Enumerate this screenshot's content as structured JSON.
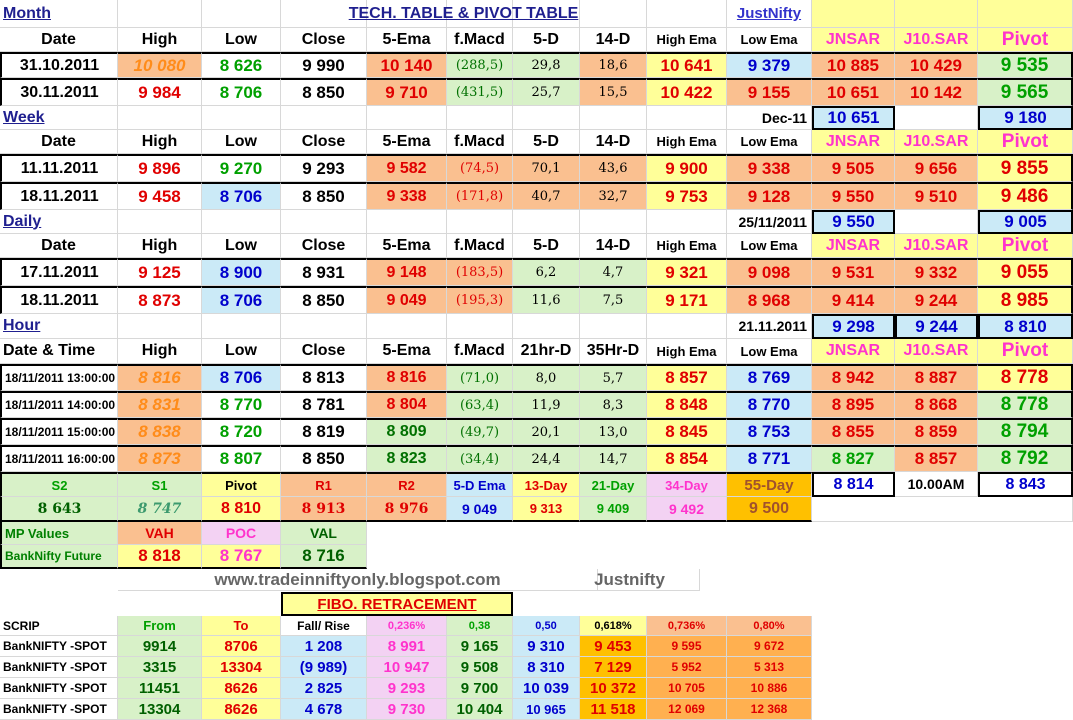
{
  "title": "TECH. TABLE  & PIVOT TABLE",
  "brand": "JustNifty",
  "brand2": "Justnifty",
  "website": "www.tradeinniftyonly.blogspot.com",
  "colors": {
    "orange": "#fac090",
    "green": "#d8f1c8",
    "blue": "#cbeaf7",
    "yellow": "#ffff99",
    "pink": "#f3d2f3",
    "gold": "#ffc000",
    "navy": "#1f1f8f"
  },
  "month": {
    "label": "Month",
    "headers": [
      "Date",
      "High",
      "Low",
      "Close",
      "5-Ema",
      "f.Macd",
      "5-D",
      "14-D",
      "High Ema",
      "Low Ema",
      "JNSAR",
      "J10.SAR",
      "Pivot"
    ],
    "rows": [
      [
        "31.10.2011",
        "10 080",
        "8 626",
        "9 990",
        "10 140",
        "(288,5)",
        "29,8",
        "18,6",
        "10 641",
        "9 379",
        "10 885",
        "10 429",
        "9 535"
      ],
      [
        "30.11.2011",
        "9 984",
        "8 706",
        "8 850",
        "9 710",
        "(431,5)",
        "25,7",
        "15,5",
        "10 422",
        "9 155",
        "10 651",
        "10 142",
        "9 565"
      ]
    ]
  },
  "week": {
    "label": "Week",
    "ref_date": "Dec-11",
    "ref_jnsar": "10 651",
    "ref_pivot": "9 180",
    "headers": [
      "Date",
      "High",
      "Low",
      "Close",
      "5-Ema",
      "f.Macd",
      "5-D",
      "14-D",
      "High Ema",
      "Low Ema",
      "JNSAR",
      "J10.SAR",
      "Pivot"
    ],
    "rows": [
      [
        "11.11.2011",
        "9 896",
        "9 270",
        "9 293",
        "9 582",
        "(74,5)",
        "70,1",
        "43,6",
        "9 900",
        "9 338",
        "9 505",
        "9 656",
        "9 855"
      ],
      [
        "18.11.2011",
        "9 458",
        "8 706",
        "8 850",
        "9 338",
        "(171,8)",
        "40,7",
        "32,7",
        "9 753",
        "9 128",
        "9 550",
        "9 510",
        "9 486"
      ]
    ]
  },
  "daily": {
    "label": "Daily",
    "ref_date": "25/11/2011",
    "ref_jnsar": "9 550",
    "ref_pivot": "9 005",
    "headers": [
      "Date",
      "High",
      "Low",
      "Close",
      "5-Ema",
      "f.Macd",
      "5-D",
      "14-D",
      "High Ema",
      "Low Ema",
      "JNSAR",
      "J10.SAR",
      "Pivot"
    ],
    "rows": [
      [
        "17.11.2011",
        "9 125",
        "8 900",
        "8 931",
        "9 148",
        "(183,5)",
        "6,2",
        "4,7",
        "9 321",
        "9 098",
        "9 531",
        "9 332",
        "9 055"
      ],
      [
        "18.11.2011",
        "8 873",
        "8 706",
        "8 850",
        "9 049",
        "(195,3)",
        "11,6",
        "7,5",
        "9 171",
        "8 968",
        "9 414",
        "9 244",
        "8 985"
      ]
    ]
  },
  "hour": {
    "label": "Hour",
    "ref_date": "21.11.2011",
    "ref_jnsar": "9 298",
    "ref_j10": "9 244",
    "ref_pivot": "8 810",
    "headers": [
      "Date & Time",
      "High",
      "Low",
      "Close",
      "5-Ema",
      "f.Macd",
      "21hr-D",
      "35Hr-D",
      "High Ema",
      "Low Ema",
      "JNSAR",
      "J10.SAR",
      "Pivot"
    ],
    "rows": [
      [
        "18/11/2011 13:00:00",
        "8 816",
        "8 706",
        "8 813",
        "8 816",
        "(71,0)",
        "8,0",
        "5,7",
        "8 857",
        "8 769",
        "8 942",
        "8 887",
        "8 778"
      ],
      [
        "18/11/2011 14:00:00",
        "8 831",
        "8 770",
        "8 781",
        "8 804",
        "(63,4)",
        "11,9",
        "8,3",
        "8 848",
        "8 770",
        "8 895",
        "8 868",
        "8 778"
      ],
      [
        "18/11/2011 15:00:00",
        "8 838",
        "8 720",
        "8 819",
        "8 809",
        "(49,7)",
        "20,1",
        "13,0",
        "8 845",
        "8 753",
        "8 855",
        "8 859",
        "8 794"
      ],
      [
        "18/11/2011 16:00:00",
        "8 873",
        "8 807",
        "8 850",
        "8 823",
        "(34,4)",
        "24,4",
        "14,7",
        "8 854",
        "8 771",
        "8 827",
        "8 857",
        "8 792"
      ]
    ]
  },
  "levels": {
    "headers": [
      "S2",
      "S1",
      "Pivot",
      "R1",
      "R2",
      "5-D Ema",
      "13-Day",
      "21-Day",
      "34-Day",
      "55-Day"
    ],
    "values": [
      "8 643",
      "8 747",
      "8 810",
      "8 913",
      "8 976",
      "9 049",
      "9 313",
      "9 409",
      "9 492",
      "9 500"
    ],
    "extra1": "8 814",
    "time": "10.00AM",
    "extra2": "8 843"
  },
  "mp": {
    "label": "MP Values",
    "vah_label": "VAH",
    "poc_label": "POC",
    "val_label": "VAL",
    "row_label": "BankNifty Future",
    "vah": "8 818",
    "poc": "8 767",
    "val": "8 716"
  },
  "fibo": {
    "title": "FIBO. RETRACEMENT",
    "headers": [
      "SCRIP",
      "From",
      "To",
      "Fall/ Rise",
      "0,236%",
      "0,38",
      "0,50",
      "0,618%",
      "0,736%",
      "0,80%"
    ],
    "rows": [
      [
        "BankNIFTY -SPOT",
        "9914",
        "8706",
        "1 208",
        "8 991",
        "9 165",
        "9 310",
        "9 453",
        "9 595",
        "9 672"
      ],
      [
        "BankNIFTY -SPOT",
        "3315",
        "13304",
        "(9 989)",
        "10 947",
        "9 508",
        "8 310",
        "7 129",
        "5 952",
        "5 313"
      ],
      [
        "BankNIFTY -SPOT",
        "11451",
        "8626",
        "2 825",
        "9 293",
        "9 700",
        "10 039",
        "10 372",
        "10 705",
        "10 886"
      ],
      [
        "BankNIFTY -SPOT",
        "13304",
        "8626",
        "4 678",
        "9 730",
        "10 404",
        "10 965",
        "11 518",
        "12 069",
        "12 368"
      ]
    ]
  }
}
